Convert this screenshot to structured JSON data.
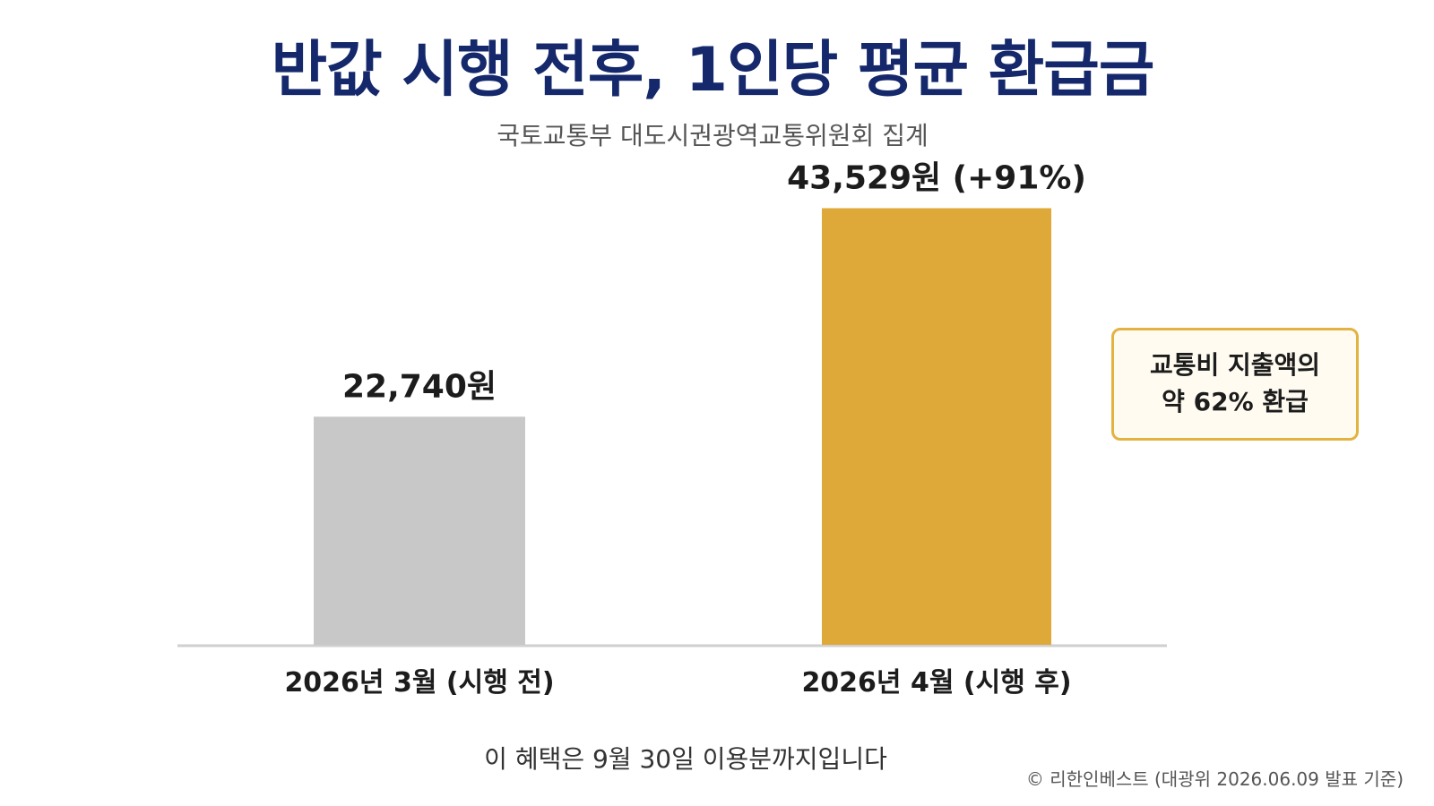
{
  "title": "반값 시행 전후, 1인당 평균 환급금",
  "subtitle": "국토교통부 대도시권광역교통위원회 집계",
  "chart_data": {
    "type": "bar",
    "categories": [
      "2026년 3월 (시행 전)",
      "2026년 4월 (시행 후)"
    ],
    "values": [
      22740,
      43529
    ],
    "value_labels": [
      "22,740원",
      "43,529원 (+91%)"
    ],
    "unit": "원",
    "ylim": [
      0,
      50000
    ],
    "grid": false,
    "colors": [
      "#c8c8c8",
      "#dfa93a"
    ]
  },
  "callout": {
    "line1": "교통비 지출액의",
    "line2": "약 62% 환급"
  },
  "footnote": "이 혜택은 9월 30일 이용분까지입니다",
  "copyright": "© 리한인베스트 (대광위 2026.06.09 발표 기준)"
}
